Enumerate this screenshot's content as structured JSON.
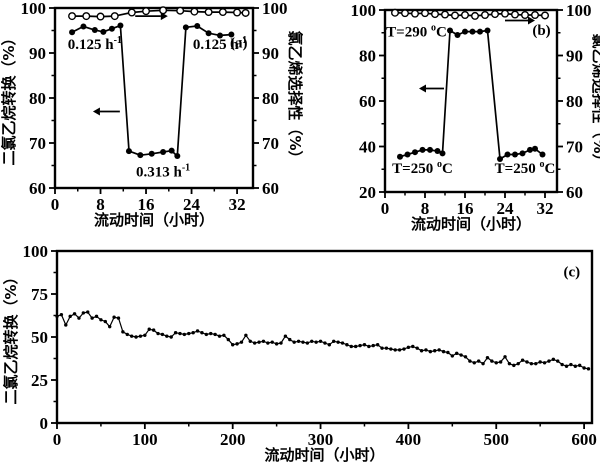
{
  "figure": {
    "background": "#ffffff",
    "ink_color": "#000000",
    "panel_labels": [
      "(a)",
      "(b)",
      "(c)"
    ]
  },
  "chart_data": [
    {
      "id": "a",
      "type": "line",
      "panel_label": "(a)",
      "xlabel": "流动时间（小时）",
      "ylabel_left": "二氯乙烷转换（%）",
      "ylabel_right": "氯乙烯选择性（%）",
      "xlim": [
        0,
        34.8
      ],
      "xticks": [
        0,
        8,
        16,
        24,
        32
      ],
      "xminor": [
        4,
        12,
        20,
        28
      ],
      "ylim_left": [
        60,
        100
      ],
      "yticks_left": [
        60,
        70,
        80,
        90,
        100
      ],
      "yminor_left": [
        65,
        75,
        85,
        95
      ],
      "ylim_right": [
        60,
        100
      ],
      "yticks_right": [
        60,
        70,
        80,
        90,
        100
      ],
      "yminor_right": [
        65,
        75,
        85,
        95
      ],
      "grid": false,
      "series": [
        {
          "name": "二氯乙烷转换",
          "axis": "left",
          "marker": "filled-circle",
          "x": [
            3,
            5,
            7,
            8.5,
            10,
            11.5,
            13,
            15,
            17,
            19,
            20.5,
            21.5,
            23,
            25,
            27,
            29,
            31
          ],
          "y": [
            94.6,
            95.9,
            95.1,
            94.7,
            95.4,
            96.1,
            68.2,
            67.3,
            67.6,
            68.0,
            68.3,
            67.1,
            95.7,
            96.0,
            94.4,
            93.9,
            94.1
          ]
        },
        {
          "name": "氯乙烯选择性",
          "axis": "right",
          "marker": "open-circle",
          "x": [
            3,
            5.5,
            8,
            10.5,
            13.5,
            16,
            19,
            22,
            24.5,
            27,
            29.5,
            32,
            33.5
          ],
          "y": [
            98.2,
            98.2,
            98.1,
            98.2,
            99.0,
            99.3,
            99.5,
            99.4,
            99.2,
            99.1,
            99.1,
            99.0,
            98.9
          ]
        }
      ],
      "annotations": [
        {
          "text": "0.125 h",
          "sup": "-1",
          "x": 7,
          "y": 92,
          "axis": "left"
        },
        {
          "text": "0.125 h",
          "sup": "-1",
          "x": 29,
          "y": 92,
          "axis": "left"
        },
        {
          "text": "0.313 h",
          "sup": "-1",
          "x": 19,
          "y": 63.7,
          "axis": "left"
        },
        {
          "text": "(a)",
          "x": 32.3,
          "y": 92.3,
          "axis": "left",
          "panel": true
        }
      ],
      "arrows": [
        {
          "x1": 11.4,
          "x2": 7.9,
          "y": 77,
          "axis": "left"
        },
        {
          "x1": 14.1,
          "x2": 18.6,
          "y": 98.2,
          "axis": "left"
        }
      ]
    },
    {
      "id": "b",
      "type": "line",
      "panel_label": "(b)",
      "xlabel": "流动时间（小时）",
      "ylabel_left": "",
      "ylabel_right": "氯乙烯选择性（%）",
      "xlim": [
        0,
        34.4
      ],
      "xticks": [
        0,
        8,
        16,
        24,
        32
      ],
      "xminor": [
        4,
        12,
        20,
        28
      ],
      "ylim_left": [
        20,
        100
      ],
      "yticks_left": [
        20,
        40,
        60,
        80,
        100
      ],
      "yminor_left": [
        30,
        50,
        70,
        90
      ],
      "ylim_right": [
        60,
        100
      ],
      "yticks_right": [
        60,
        70,
        80,
        90,
        100
      ],
      "yminor_right": [
        65,
        75,
        85,
        95
      ],
      "grid": false,
      "series": [
        {
          "name": "二氯乙烷转换",
          "axis": "left",
          "marker": "filled-circle",
          "x": [
            3,
            4.5,
            6,
            7.5,
            9,
            10.5,
            11.5,
            13,
            14.5,
            16,
            17.5,
            19,
            20.5,
            23,
            24.5,
            26,
            27.5,
            29,
            30,
            31.5
          ],
          "y": [
            35.5,
            36.5,
            37.5,
            38.5,
            38.5,
            38,
            37,
            91,
            89,
            90.5,
            90.5,
            90.5,
            91,
            34.5,
            36.5,
            36.5,
            37,
            38.5,
            39,
            36.5
          ]
        },
        {
          "name": "氯乙烯选择性",
          "axis": "right",
          "marker": "open-circle",
          "x": [
            2,
            4,
            6,
            8,
            10,
            12,
            14,
            16,
            18,
            20,
            22,
            24,
            26,
            28,
            30,
            32
          ],
          "y": [
            99.4,
            99.3,
            99.2,
            99.3,
            99.1,
            99.0,
            98.8,
            98.9,
            98.7,
            98.9,
            99.1,
            99.2,
            99.0,
            98.9,
            98.9,
            98.8
          ]
        }
      ],
      "annotations": [
        {
          "text": "T=290 ",
          "sup": "o",
          "tail": "C",
          "x": 6.3,
          "y": 90.6,
          "axis": "left"
        },
        {
          "text": "T=250 ",
          "sup": "o",
          "tail": "C",
          "x": 7.5,
          "y": 30.5,
          "axis": "left"
        },
        {
          "text": "T=250 ",
          "sup": "o",
          "tail": "C",
          "x": 28,
          "y": 30.5,
          "axis": "left"
        },
        {
          "text": "(b)",
          "x": 31.3,
          "y": 91.2,
          "axis": "left",
          "panel": true
        }
      ],
      "arrows": [
        {
          "x1": 11.8,
          "x2": 8.2,
          "y": 65.5,
          "axis": "left"
        },
        {
          "x1": 24,
          "x2": 28.6,
          "y": 97.7,
          "axis": "right"
        }
      ]
    },
    {
      "id": "c",
      "type": "line",
      "panel_label": "(c)",
      "xlabel": "流动时间（小时）",
      "ylabel_left": "二氯乙烷转换（%）",
      "ylabel_right": "",
      "xlim": [
        0,
        609
      ],
      "xticks": [
        0,
        100,
        200,
        300,
        400,
        500,
        600
      ],
      "xminor": [
        50,
        150,
        250,
        350,
        450,
        550
      ],
      "ylim_left": [
        0,
        100
      ],
      "yticks_left": [
        0,
        25,
        50,
        75,
        100
      ],
      "yminor_left": [
        12.5,
        37.5,
        62.5,
        87.5
      ],
      "grid": false,
      "series": [
        {
          "name": "二氯乙烷转换",
          "axis": "left",
          "marker": "small-filled-circle",
          "x_start": 0,
          "x_step": 5,
          "values": [
            62,
            63,
            57,
            62,
            63.5,
            61,
            64,
            64.5,
            61,
            62,
            60,
            59,
            56,
            61.5,
            61,
            53,
            51.5,
            50.5,
            50,
            50.5,
            51,
            54.5,
            54,
            52,
            51.5,
            50.5,
            50,
            52.5,
            52,
            51.5,
            52,
            52.5,
            53.5,
            52.5,
            51.5,
            52,
            51.5,
            50.5,
            51,
            48.5,
            45.5,
            46,
            47,
            51,
            47.5,
            46.5,
            47,
            47.5,
            46.5,
            47,
            46,
            46.5,
            50.5,
            48.5,
            47,
            47.5,
            47,
            46.5,
            47.5,
            47,
            47.5,
            46.5,
            45.5,
            47.5,
            47,
            46.5,
            45.5,
            44.5,
            44.5,
            45,
            45.5,
            44.5,
            45,
            45.5,
            43.5,
            43.5,
            43,
            42.5,
            42.5,
            43,
            44,
            44.5,
            43.5,
            42,
            42.5,
            41.5,
            42,
            42.5,
            41.5,
            41,
            39,
            40.5,
            39.5,
            38.5,
            36,
            35,
            36,
            34.5,
            38,
            36,
            35,
            35.5,
            38.5,
            34.5,
            33.5,
            34.5,
            36.5,
            35.5,
            34.5,
            34.5,
            35.5,
            35,
            36,
            37,
            36,
            34,
            33,
            34,
            33,
            33.5,
            32,
            31.5
          ]
        }
      ],
      "annotations": [
        {
          "text": "(c)",
          "x": 586,
          "y": 88,
          "axis": "left",
          "panel": true
        }
      ],
      "arrows": []
    }
  ]
}
